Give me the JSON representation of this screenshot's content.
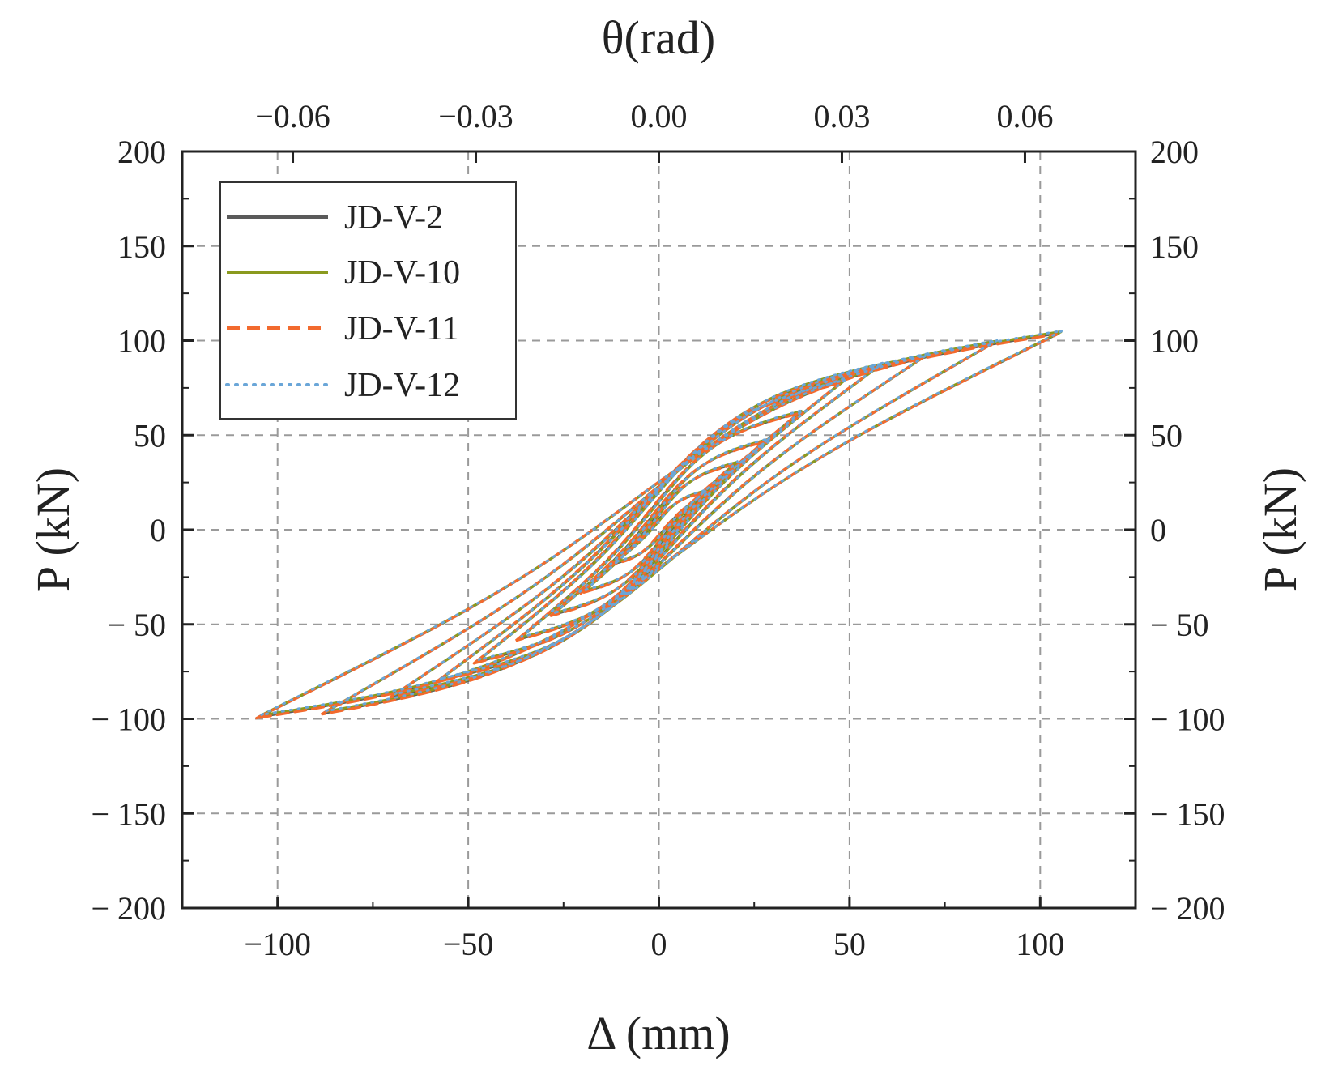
{
  "chart_data": {
    "type": "line",
    "xlabel": "Δ (mm)",
    "ylabel": "P (kN)",
    "x2label": "θ(rad)",
    "y2label": "P (kN)",
    "xlim": [
      -125,
      125
    ],
    "ylim": [
      -200,
      200
    ],
    "grid": true,
    "legend_position": "top-left",
    "x_ticks": [
      -100,
      -50,
      0,
      50,
      100
    ],
    "x_tick_labels": [
      "−100",
      "−50",
      "0",
      "50",
      "100"
    ],
    "y_ticks": [
      200,
      150,
      100,
      50,
      0,
      -50,
      -100,
      -150,
      -200
    ],
    "y_tick_labels": [
      "200",
      "150",
      "100",
      "50",
      "0",
      "− 50",
      "− 100",
      "− 150",
      "− 200"
    ],
    "y2_tick_labels": [
      "200",
      "150",
      "100",
      "50",
      "0",
      "− 50",
      "− 100",
      "− 150",
      "− 200"
    ],
    "x2_ticks": [
      -0.06,
      -0.03,
      0.0,
      0.03,
      0.06
    ],
    "x2_tick_labels": [
      "−0.06",
      "−0.03",
      "0.00",
      "0.03",
      "0.06"
    ],
    "loops": [
      {
        "amp": 12,
        "pmax": 20,
        "pmin": -18
      },
      {
        "amp": 20,
        "pmax": 35,
        "pmin": -33
      },
      {
        "amp": 28,
        "pmax": 47,
        "pmin": -45
      },
      {
        "amp": 37,
        "pmax": 62,
        "pmin": -58
      },
      {
        "amp": 48,
        "pmax": 78,
        "pmin": -70
      },
      {
        "amp": 58,
        "pmax": 87,
        "pmin": -80
      },
      {
        "amp": 70,
        "pmax": 92,
        "pmin": -88
      },
      {
        "amp": 88,
        "pmax": 99,
        "pmin": -97
      },
      {
        "amp": 105,
        "pmax": 104,
        "pmin": -99
      }
    ],
    "series": [
      {
        "name": "JD-V-2",
        "color": "#5a5a5a",
        "style": "solid"
      },
      {
        "name": "JD-V-10",
        "color": "#8a9a1e",
        "style": "solid"
      },
      {
        "name": "JD-V-11",
        "color": "#f26a2e",
        "style": "dashed"
      },
      {
        "name": "JD-V-12",
        "color": "#6aa6d8",
        "style": "dotted"
      }
    ]
  }
}
